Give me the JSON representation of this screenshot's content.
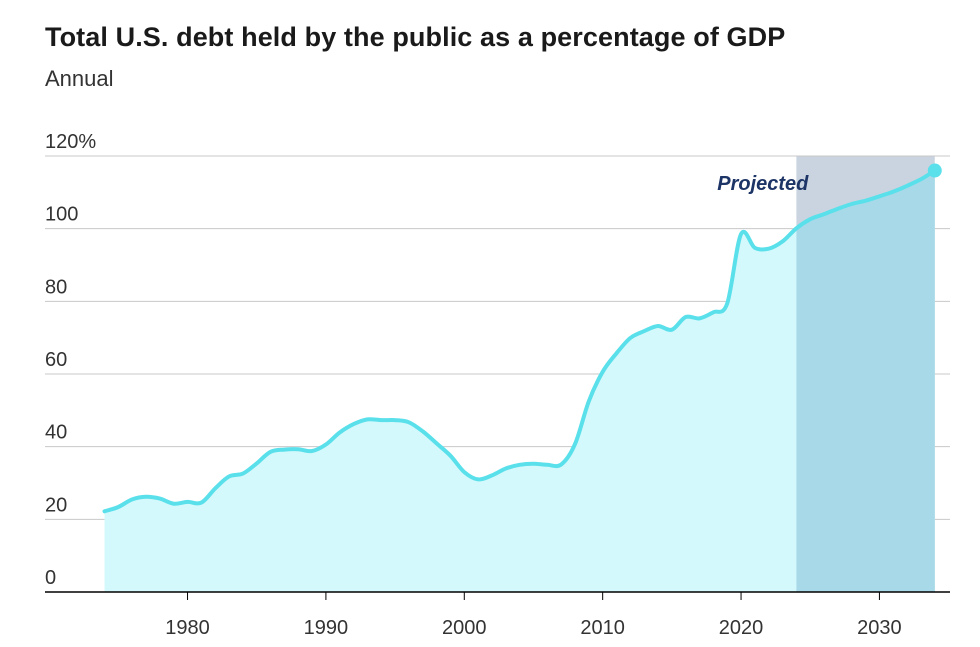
{
  "chart_data": {
    "type": "area",
    "title": "Total U.S. debt held by the public as a percentage of GDP",
    "subtitle": "Annual",
    "xlabel": "",
    "ylabel": "",
    "xlim": [
      1969.7,
      2035.1
    ],
    "ylim": [
      0,
      120
    ],
    "y_ticks": [
      {
        "value": 0,
        "label": "0"
      },
      {
        "value": 20,
        "label": "20"
      },
      {
        "value": 40,
        "label": "40"
      },
      {
        "value": 60,
        "label": "60"
      },
      {
        "value": 80,
        "label": "80"
      },
      {
        "value": 100,
        "label": "100"
      },
      {
        "value": 120,
        "label": "120%"
      }
    ],
    "x_ticks": [
      {
        "value": 1980,
        "label": "1980"
      },
      {
        "value": 1990,
        "label": "1990"
      },
      {
        "value": 2000,
        "label": "2000"
      },
      {
        "value": 2010,
        "label": "2010"
      },
      {
        "value": 2020,
        "label": "2020"
      },
      {
        "value": 2030,
        "label": "2030"
      }
    ],
    "grid": true,
    "projection": {
      "start": 2024,
      "end": 2034,
      "label": "Projected"
    },
    "series": [
      {
        "x": [
          1974,
          1975,
          1976,
          1977,
          1978,
          1979,
          1980,
          1981,
          1982,
          1983,
          1984,
          1985,
          1986,
          1987,
          1988,
          1989,
          1990,
          1991,
          1992,
          1993,
          1994,
          1995,
          1996,
          1997,
          1998,
          1999,
          2000,
          2001,
          2002,
          2003,
          2004,
          2005,
          2006,
          2007,
          2008,
          2009,
          2010,
          2011,
          2012,
          2013,
          2014,
          2015,
          2016,
          2017,
          2018,
          2019,
          2020,
          2021,
          2022,
          2023,
          2024,
          2025,
          2026,
          2027,
          2028,
          2029,
          2030,
          2031,
          2032,
          2033,
          2034
        ],
        "values": [
          22.2,
          23.4,
          25.5,
          26.2,
          25.7,
          24.3,
          24.8,
          24.6,
          28.5,
          31.8,
          32.6,
          35.4,
          38.6,
          39.2,
          39.3,
          38.8,
          40.6,
          43.9,
          46.2,
          47.5,
          47.3,
          47.3,
          46.7,
          44.2,
          40.9,
          37.5,
          33.0,
          31.0,
          32.1,
          34.0,
          35.0,
          35.3,
          35.0,
          35.1,
          40.7,
          52.5,
          60.6,
          65.7,
          69.9,
          71.8,
          73.2,
          72.2,
          75.7,
          75.3,
          77.0,
          79.4,
          98.5,
          94.7,
          94.5,
          96.5,
          100.1,
          102.6,
          104.0,
          105.5,
          106.8,
          107.7,
          108.9,
          110.2,
          111.8,
          113.6,
          116.0
        ]
      }
    ],
    "colors": {
      "line": "#5ae0ea",
      "fill": "#d4f9fc",
      "projection_fill": "#a8d9e8",
      "projection_upper": "#cad4e0",
      "grid": "#c8c8c8",
      "axis": "#000000",
      "label": "#1c3466"
    }
  }
}
